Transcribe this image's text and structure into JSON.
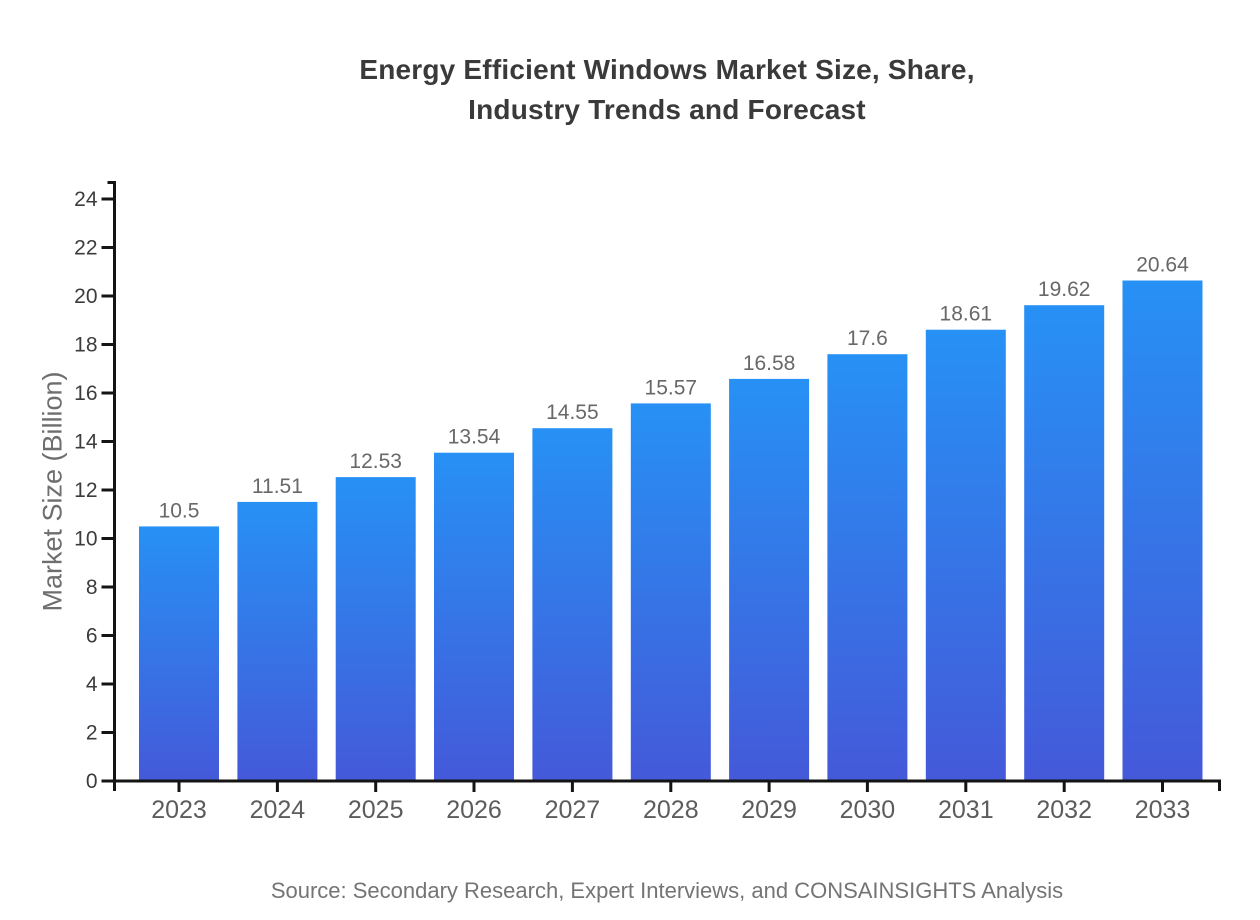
{
  "chart_data": {
    "type": "bar",
    "title": "Energy Efficient Windows Market Size, Share,\nIndustry Trends and Forecast",
    "categories": [
      "2023",
      "2024",
      "2025",
      "2026",
      "2027",
      "2028",
      "2029",
      "2030",
      "2031",
      "2032",
      "2033"
    ],
    "values": [
      10.5,
      11.51,
      12.53,
      13.54,
      14.55,
      15.57,
      16.58,
      17.6,
      18.61,
      19.62,
      20.64
    ],
    "value_labels": [
      "10.5",
      "11.51",
      "12.53",
      "13.54",
      "14.55",
      "15.57",
      "16.58",
      "17.6",
      "18.61",
      "19.62",
      "20.64"
    ],
    "xlabel": "",
    "ylabel": "Market Size (Billion)",
    "ylim": [
      0,
      24
    ],
    "y_ticks": [
      0,
      2,
      4,
      6,
      8,
      10,
      12,
      14,
      16,
      18,
      20,
      22,
      24
    ],
    "grid": false,
    "legend_position": "none",
    "source": "Source: Secondary Research, Expert Interviews, and CONSAINSIGHTS Analysis",
    "colors": {
      "bar_gradient_top": "#2791f5",
      "bar_gradient_bottom": "#4459d9",
      "axis": "#141414",
      "title_text": "#3a3a3a",
      "ytick_text": "#3c3c3c",
      "xtick_text": "#5c5c5c",
      "value_text": "#686868",
      "axis_title_text": "#6e6e6e",
      "source_text": "#747474",
      "background": "#ffffff"
    }
  }
}
